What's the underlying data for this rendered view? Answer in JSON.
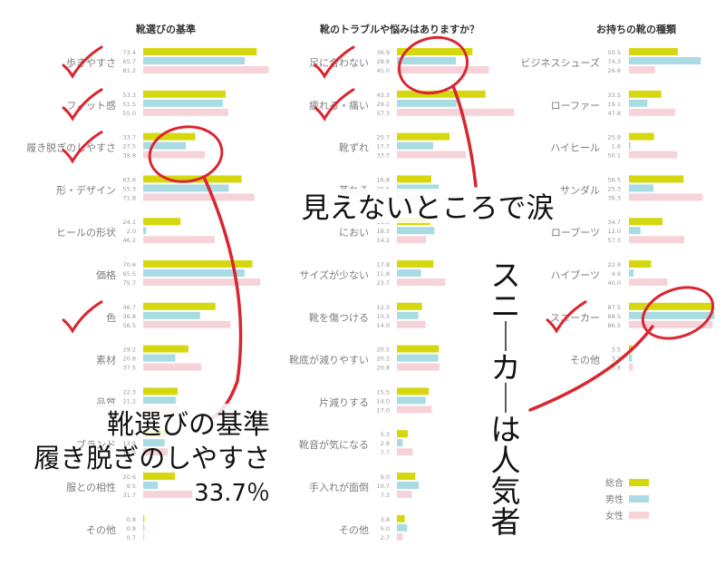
{
  "legend": {
    "items": [
      {
        "label": "総合",
        "color": "#d6d80f"
      },
      {
        "label": "男性",
        "color": "#a9dbe3"
      },
      {
        "label": "女性",
        "color": "#f6d3d8"
      }
    ]
  },
  "chart_data": [
    {
      "type": "bar",
      "title": "靴選びの基準",
      "categories": [
        "歩きやすさ",
        "フィット感",
        "履き脱ぎのしやすさ",
        "形・デザイン",
        "ヒールの形状",
        "価格",
        "色",
        "素材",
        "品質",
        "ブランド",
        "服との相性",
        "その他"
      ],
      "series": [
        {
          "name": "総合",
          "values": [
            73.4,
            53.3,
            33.7,
            63.6,
            24.1,
            70.6,
            46.7,
            29.2,
            22.3,
            14.8,
            20.6,
            0.8
          ]
        },
        {
          "name": "男性",
          "values": [
            65.7,
            51.5,
            27.5,
            55.3,
            2.0,
            65.5,
            36.8,
            20.8,
            21.2,
            13.8,
            9.5,
            0.8
          ]
        },
        {
          "name": "女性",
          "values": [
            81.2,
            55.0,
            39.8,
            71.8,
            46.2,
            75.7,
            56.5,
            37.5,
            23.5,
            15.8,
            31.7,
            0.7
          ]
        }
      ],
      "xlim": [
        0,
        82
      ],
      "checked": [
        0,
        1,
        2,
        6
      ]
    },
    {
      "type": "bar",
      "title": "靴のトラブルや悩みはありますか？",
      "categories": [
        "足に合わない",
        "疲れる・痛い",
        "靴ずれ",
        "蒸れる",
        "におい",
        "サイズが少ない",
        "靴を傷つける",
        "靴底が減りやすい",
        "片減りする",
        "靴音が気になる",
        "手入れが面倒",
        "その他"
      ],
      "series": [
        {
          "name": "総合",
          "values": [
            36.9,
            43.3,
            25.7,
            16.8,
            16.3,
            17.8,
            12.3,
            20.5,
            15.5,
            5.3,
            9.0,
            3.8
          ]
        },
        {
          "name": "男性",
          "values": [
            28.8,
            29.2,
            17.7,
            20.5,
            18.3,
            11.8,
            10.5,
            20.2,
            14.0,
            2.8,
            10.7,
            5.0
          ]
        },
        {
          "name": "女性",
          "values": [
            45.0,
            57.3,
            33.7,
            13.2,
            14.2,
            23.7,
            14.0,
            20.8,
            17.0,
            7.7,
            7.3,
            2.7
          ]
        }
      ],
      "xlim": [
        0,
        62
      ],
      "checked": [
        0,
        1
      ]
    },
    {
      "type": "bar",
      "title": "お持ちの靴の種類",
      "categories": [
        "ビジネスシューズ",
        "ローファー",
        "ハイヒール",
        "サンダル",
        "ローブーツ",
        "ハイブーツ",
        "スニーカー",
        "その他"
      ],
      "series": [
        {
          "name": "総合",
          "values": [
            50.5,
            33.5,
            25.9,
            56.5,
            34.7,
            22.9,
            87.5,
            3.5
          ]
        },
        {
          "name": "男性",
          "values": [
            74.3,
            19.1,
            1.6,
            25.3,
            12.0,
            4.9,
            88.5,
            3.2
          ]
        },
        {
          "name": "女性",
          "values": [
            26.8,
            47.8,
            50.1,
            76.3,
            57.3,
            40.0,
            86.5,
            3.8
          ]
        }
      ],
      "xlim": [
        0,
        90
      ],
      "checked": [
        6
      ]
    }
  ],
  "annotations": {
    "left_line1": "靴選びの基準",
    "left_line2": "履き脱ぎのしやすさ",
    "left_pct": "33.7％",
    "middle": "見えないところで涙",
    "right_vertical": "スニーカーは人気者"
  },
  "colors": {
    "annotation_red": "#d9262f",
    "label_gray": "#7d7d7d"
  }
}
